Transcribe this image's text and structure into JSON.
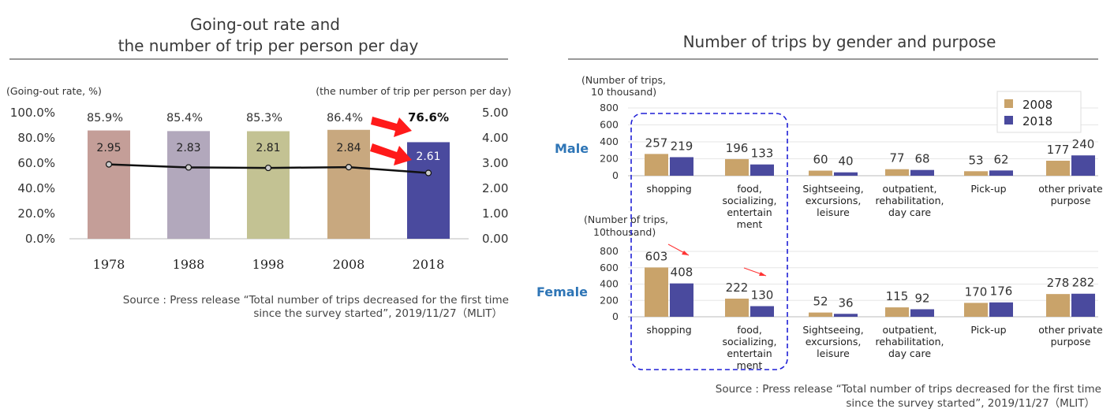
{
  "left_chart": {
    "title_lines": [
      "Going-out rate and",
      "the number of trip per person per day"
    ],
    "ylabel_left": "(Going-out rate, %)",
    "ylabel_right": "(the number of trip per person per day)",
    "left_ticks": [
      "100.0%",
      "80.0%",
      "60.0%",
      "40.0%",
      "20.0%",
      "0.0%"
    ],
    "right_ticks": [
      "5.00",
      "4.00",
      "3.00",
      "2.00",
      "1.00",
      "0.00"
    ],
    "source_lines": [
      "Source :  Press release “Total number of trips decreased for the first time",
      "since the survey started”, 2019/11/27（MLIT）"
    ]
  },
  "right_chart": {
    "title": "Number of trips by gender and purpose",
    "male_label": "Male",
    "female_label": "Female",
    "male_ylabel_lines": [
      "(Number of trips,",
      "10 thousand)"
    ],
    "female_ylabel_lines": [
      "(Number of trips,",
      "10thousand)"
    ],
    "male_ticks": [
      "800",
      "600",
      "400",
      "200",
      "0"
    ],
    "female_ticks": [
      "800",
      "600",
      "400",
      "200",
      "0"
    ],
    "legend": [
      "2008",
      "2018"
    ],
    "categories": [
      [
        "shopping"
      ],
      [
        "food,",
        "socializing,",
        "entertain",
        "ment"
      ],
      [
        "Sightseeing,",
        "excursions,",
        "leisure"
      ],
      [
        "outpatient,",
        "rehabilitation,",
        "day care"
      ],
      [
        "Pick-up"
      ],
      [
        "other private",
        "purpose"
      ]
    ],
    "source_lines": [
      "Source :  Press release “Total number of trips decreased for the first time",
      "since the survey started”, 2019/11/27（MLIT）"
    ]
  },
  "colors": {
    "bar_2008": "#c9a36a",
    "bar_2018": "#4a4a9e",
    "year_bars": [
      "#c49e98",
      "#b2a8bc",
      "#c3c293",
      "#c8a87f",
      "#4a4a9e"
    ],
    "arrow": "#ff1a1a",
    "highlight_box": "#1f1fd6"
  },
  "chart_data": [
    {
      "type": "bar",
      "title": "Going-out rate and the number of trip per person per day",
      "categories": [
        "1978",
        "1988",
        "1998",
        "2008",
        "2018"
      ],
      "series": [
        {
          "name": "Going-out rate",
          "values": [
            85.9,
            85.4,
            85.3,
            86.4,
            76.6
          ],
          "labels": [
            "85.9%",
            "85.4%",
            "85.3%",
            "86.4%",
            "76.6%"
          ],
          "axis": "left"
        },
        {
          "name": "the number of trip per person per day",
          "type": "line",
          "values": [
            2.95,
            2.83,
            2.81,
            2.84,
            2.61
          ],
          "labels": [
            "2.95",
            "2.83",
            "2.81",
            "2.84",
            "2.61"
          ],
          "axis": "right"
        }
      ],
      "ylim_left": [
        0,
        100
      ],
      "ylim_right": [
        0,
        5
      ],
      "ylabel_left": "(Going-out rate, %)",
      "ylabel_right": "(the number of trip per person per day)"
    },
    {
      "type": "bar",
      "title": "Number of trips by gender and purpose — Male",
      "categories": [
        "shopping",
        "food, socializing, entertainment",
        "Sightseeing, excursions, leisure",
        "outpatient, rehabilitation, day care",
        "Pick-up",
        "other private purpose"
      ],
      "series": [
        {
          "name": "2008",
          "values": [
            257,
            196,
            60,
            77,
            53,
            177
          ]
        },
        {
          "name": "2018",
          "values": [
            219,
            133,
            40,
            68,
            62,
            240
          ]
        }
      ],
      "ylim": [
        0,
        800
      ],
      "ylabel": "(Number of trips, 10 thousand)"
    },
    {
      "type": "bar",
      "title": "Number of trips by gender and purpose — Female",
      "categories": [
        "shopping",
        "food, socializing, entertainment",
        "Sightseeing, excursions, leisure",
        "outpatient, rehabilitation, day care",
        "Pick-up",
        "other private purpose"
      ],
      "series": [
        {
          "name": "2008",
          "values": [
            603,
            222,
            52,
            115,
            170,
            278
          ]
        },
        {
          "name": "2018",
          "values": [
            408,
            130,
            36,
            92,
            176,
            282
          ]
        }
      ],
      "ylim": [
        0,
        800
      ],
      "ylabel": "(Number of trips, 10thousand)"
    }
  ]
}
